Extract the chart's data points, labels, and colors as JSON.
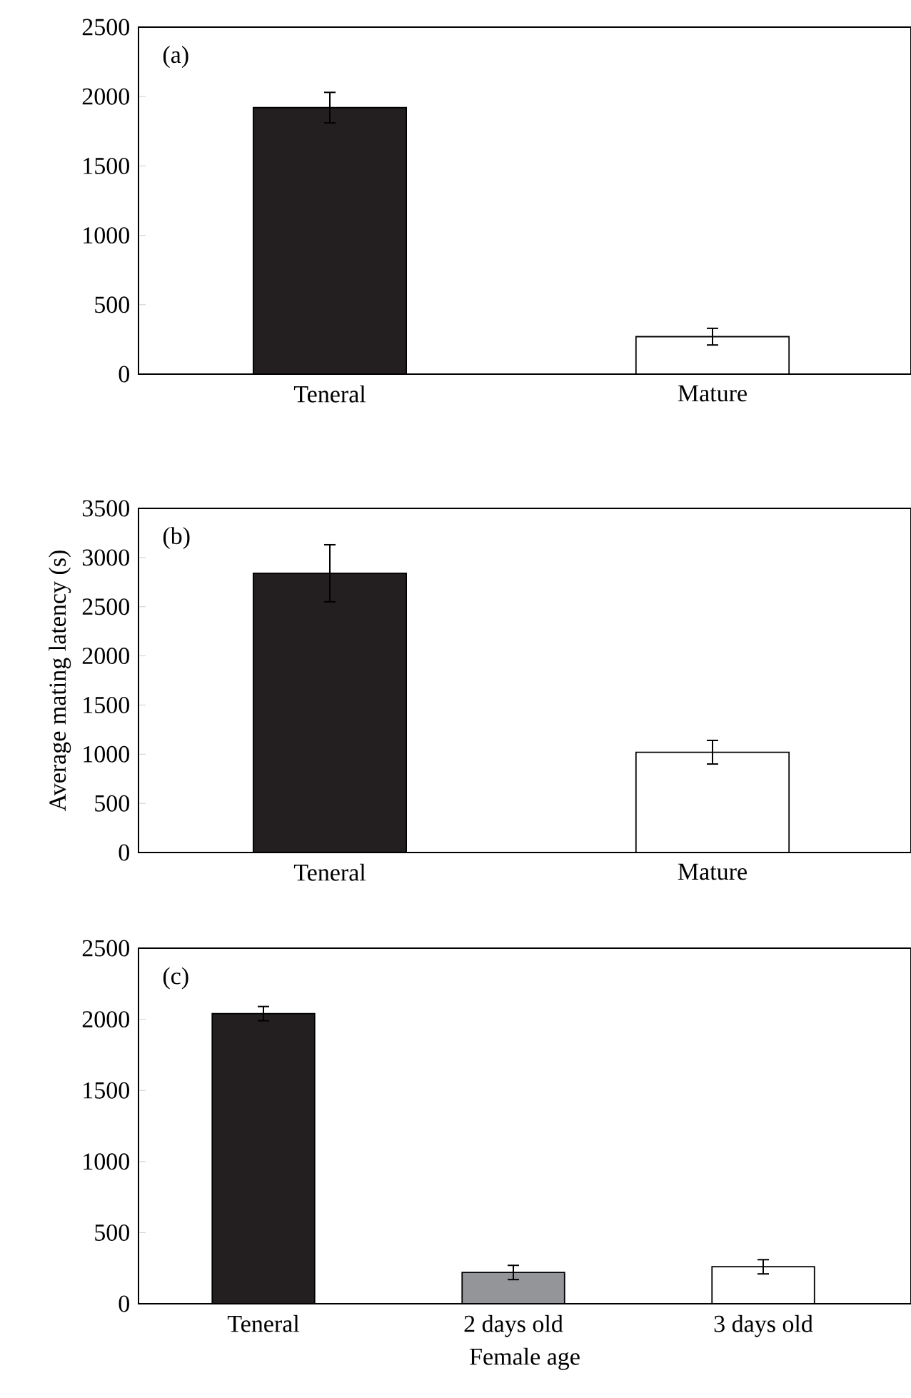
{
  "chart_data": [
    {
      "type": "bar",
      "categories": [
        "Teneral",
        "Mature"
      ],
      "values": [
        1920,
        270
      ],
      "colors": [
        "#231f20",
        "#ffffff"
      ],
      "errors": [
        110,
        60
      ],
      "ylim": [
        0,
        2500
      ],
      "yticks": [
        0,
        500,
        1000,
        1500,
        2000,
        2500
      ],
      "annotations": [
        "(a)"
      ]
    },
    {
      "type": "bar",
      "categories": [
        "Teneral",
        "Mature"
      ],
      "values": [
        2840,
        1020
      ],
      "colors": [
        "#231f20",
        "#ffffff"
      ],
      "errors": [
        290,
        120
      ],
      "ylim": [
        0,
        3500
      ],
      "yticks": [
        0,
        500,
        1000,
        1500,
        2000,
        2500,
        3000,
        3500
      ],
      "ylabel": "Average mating latency (s)",
      "annotations": [
        "(b)"
      ]
    },
    {
      "type": "bar",
      "categories": [
        "Teneral",
        "2 days old",
        "3 days old"
      ],
      "values": [
        2040,
        220,
        260
      ],
      "colors": [
        "#231f20",
        "#939598",
        "#ffffff"
      ],
      "errors": [
        50,
        50,
        50
      ],
      "ylim": [
        0,
        2500
      ],
      "yticks": [
        0,
        500,
        1000,
        1500,
        2000,
        2500
      ],
      "xlabel": "Female age",
      "annotations": [
        "(c)"
      ]
    }
  ]
}
